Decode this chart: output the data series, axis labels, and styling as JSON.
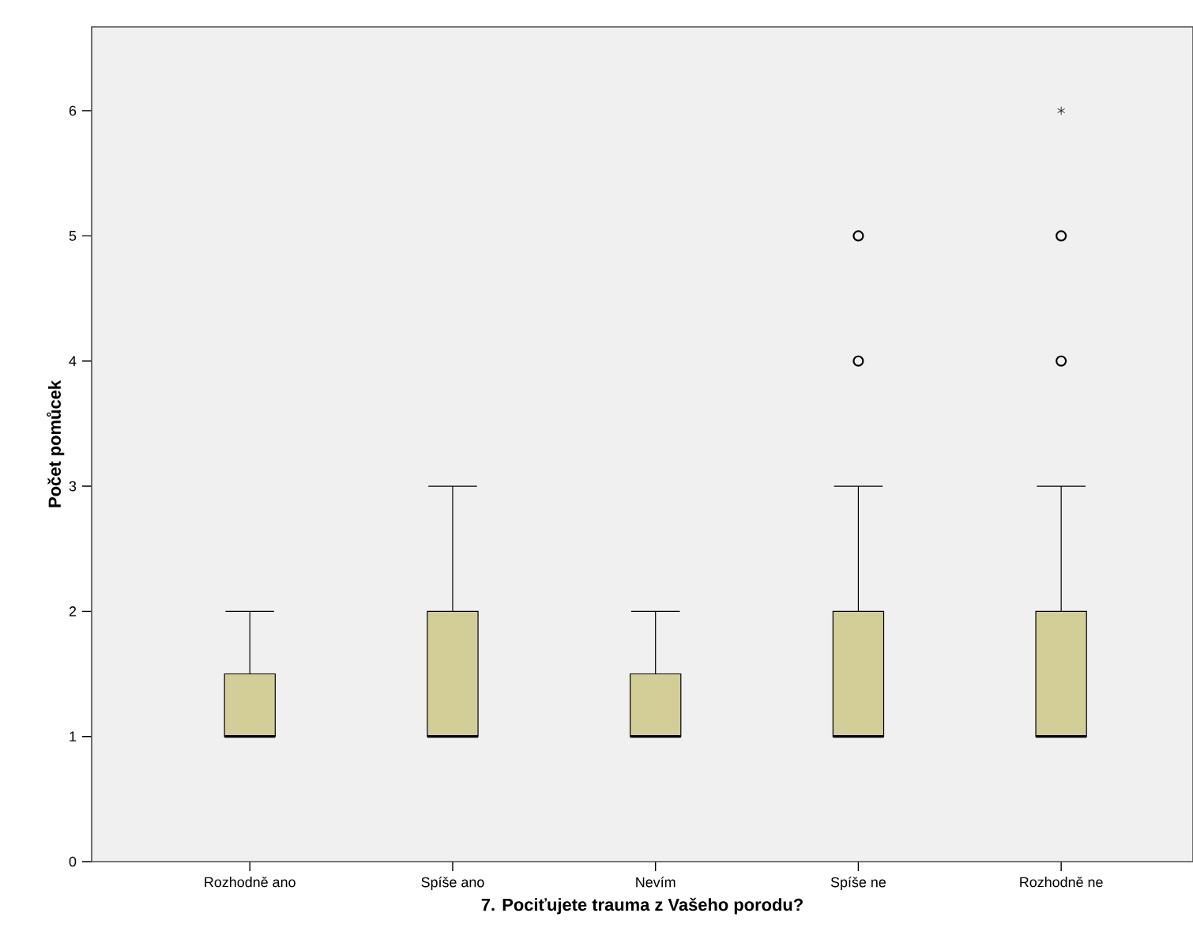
{
  "chart_data": {
    "type": "box",
    "xlabel": "7. Pociťujete trauma z Vašeho porodu?",
    "ylabel": "Počet pomůcek",
    "categories": [
      "Rozhodně ano",
      "Spíše ano",
      "Nevím",
      "Spíše ne",
      "Rozhodně ne"
    ],
    "color": "#d3ce97",
    "ylim": [
      0,
      6.67
    ],
    "yticks": [
      0,
      1,
      2,
      3,
      4,
      5,
      6
    ],
    "grid": false,
    "boxes": [
      {
        "low": 1,
        "q1": 1,
        "median": 1,
        "q3": 1.5,
        "high": 2
      },
      {
        "low": 1,
        "q1": 1,
        "median": 1,
        "q3": 2,
        "high": 3
      },
      {
        "low": 1,
        "q1": 1,
        "median": 1,
        "q3": 1.5,
        "high": 2
      },
      {
        "low": 1,
        "q1": 1,
        "median": 1,
        "q3": 2,
        "high": 3,
        "outliers": [
          4,
          5
        ]
      },
      {
        "low": 1,
        "q1": 1,
        "median": 1,
        "q3": 2,
        "high": 3,
        "outliers": [
          4,
          5,
          6
        ]
      }
    ]
  }
}
